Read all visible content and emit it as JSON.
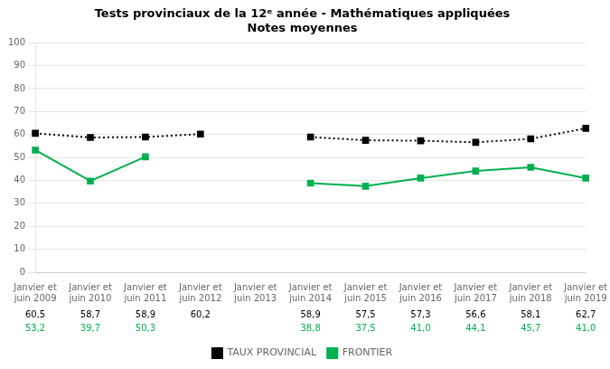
{
  "chart_data": {
    "type": "line",
    "title": "Tests provinciaux de la 12ᵉ année - Mathématiques appliquées\nNotes moyennes",
    "categories": [
      "Janvier et\njuin 2009",
      "Janvier et\njuin 2010",
      "Janvier et\njuin 2011",
      "Janvier et\njuin 2012",
      "Janvier et\njuin 2013",
      "Janvier et\njuin 2014",
      "Janvier et\njuin 2015",
      "Janvier et\njuin 2016",
      "Janvier et\njuin 2017",
      "Janvier et\njuin 2018",
      "Janvier et\njuin 2019"
    ],
    "series": [
      {
        "name": "TAUX PROVINCIAL",
        "color": "#000000",
        "line_style": "dotted",
        "marker": "square",
        "values": [
          60.5,
          58.7,
          58.9,
          60.2,
          null,
          58.9,
          57.5,
          57.3,
          56.6,
          58.1,
          62.7
        ],
        "value_labels": [
          "60,5",
          "58,7",
          "58,9",
          "60,2",
          null,
          "58,9",
          "57,5",
          "57,3",
          "56,6",
          "58,1",
          "62,7"
        ]
      },
      {
        "name": "FRONTIER",
        "color": "#00B050",
        "line_style": "solid",
        "marker": "square",
        "values": [
          53.2,
          39.7,
          50.3,
          null,
          null,
          38.8,
          37.5,
          41.0,
          44.1,
          45.7,
          41.0
        ],
        "value_labels": [
          "53,2",
          "39,7",
          "50,3",
          null,
          null,
          "38,8",
          "37,5",
          "41,0",
          "44,1",
          "45,7",
          "41,0"
        ]
      }
    ],
    "ylim": [
      0,
      100
    ],
    "yticks": [
      0,
      10,
      20,
      30,
      40,
      50,
      60,
      70,
      80,
      90,
      100
    ],
    "grid": true,
    "legend": "bottom"
  }
}
